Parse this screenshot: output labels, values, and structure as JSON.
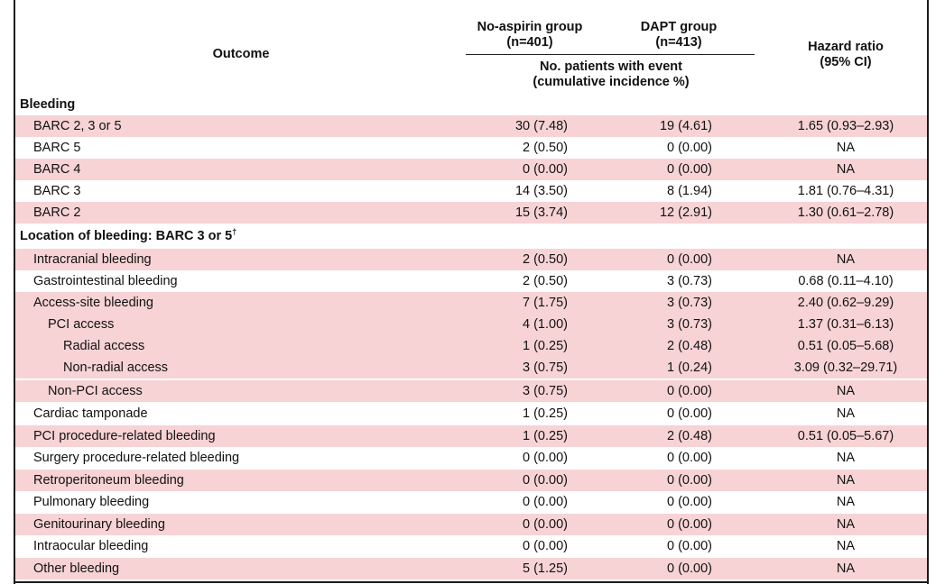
{
  "header": {
    "outcome": "Outcome",
    "no_aspirin_title": "No-aspirin group",
    "no_aspirin_n": "(n=401)",
    "dapt_title": "DAPT group",
    "dapt_n": "(n=413)",
    "events_line1": "No. patients with event",
    "events_line2": "(cumulative incidence %)",
    "hr_line1": "Hazard ratio",
    "hr_line2": "(95% CI)"
  },
  "sections": {
    "bleeding": "Bleeding",
    "location": "Location of bleeding: BARC 3 or 5",
    "location_mark": "†"
  },
  "rows": [
    {
      "label": "BARC 2, 3 or 5",
      "no_aspirin": "30 (7.48)",
      "dapt": "19 (4.61)",
      "hr": "1.65 (0.93–2.93)"
    },
    {
      "label": "BARC 5",
      "no_aspirin": "2 (0.50)",
      "dapt": "0 (0.00)",
      "hr": "NA"
    },
    {
      "label": "BARC 4",
      "no_aspirin": "0 (0.00)",
      "dapt": "0 (0.00)",
      "hr": "NA"
    },
    {
      "label": "BARC 3",
      "no_aspirin": "14 (3.50)",
      "dapt": "8 (1.94)",
      "hr": "1.81 (0.76–4.31)"
    },
    {
      "label": "BARC 2",
      "no_aspirin": "15 (3.74)",
      "dapt": "12 (2.91)",
      "hr": "1.30 (0.61–2.78)"
    },
    {
      "label": "Intracranial bleeding",
      "no_aspirin": "2 (0.50)",
      "dapt": "0 (0.00)",
      "hr": "NA"
    },
    {
      "label": "Gastrointestinal bleeding",
      "no_aspirin": "2 (0.50)",
      "dapt": "3 (0.73)",
      "hr": "0.68 (0.11–4.10)"
    },
    {
      "label": "Access-site bleeding",
      "no_aspirin": "7 (1.75)",
      "dapt": "3 (0.73)",
      "hr": "2.40 (0.62–9.29)"
    },
    {
      "label": "PCI access",
      "no_aspirin": "4 (1.00)",
      "dapt": "3 (0.73)",
      "hr": "1.37 (0.31–6.13)"
    },
    {
      "label": "Radial access",
      "no_aspirin": "1 (0.25)",
      "dapt": "2 (0.48)",
      "hr": "0.51 (0.05–5.68)"
    },
    {
      "label": "Non-radial access",
      "no_aspirin": "3 (0.75)",
      "dapt": "1 (0.24)",
      "hr": "3.09 (0.32–29.71)"
    },
    {
      "label": "Non-PCI access",
      "no_aspirin": "3 (0.75)",
      "dapt": "0 (0.00)",
      "hr": "NA"
    },
    {
      "label": "Cardiac tamponade",
      "no_aspirin": "1 (0.25)",
      "dapt": "0 (0.00)",
      "hr": "NA"
    },
    {
      "label": "PCI procedure-related bleeding",
      "no_aspirin": "1 (0.25)",
      "dapt": "2 (0.48)",
      "hr": "0.51 (0.05–5.67)"
    },
    {
      "label": "Surgery procedure-related bleeding",
      "no_aspirin": "0 (0.00)",
      "dapt": "0 (0.00)",
      "hr": "NA"
    },
    {
      "label": "Retroperitoneum bleeding",
      "no_aspirin": "0 (0.00)",
      "dapt": "0 (0.00)",
      "hr": "NA"
    },
    {
      "label": "Pulmonary bleeding",
      "no_aspirin": "0 (0.00)",
      "dapt": "0 (0.00)",
      "hr": "NA"
    },
    {
      "label": "Genitourinary bleeding",
      "no_aspirin": "0 (0.00)",
      "dapt": "0 (0.00)",
      "hr": "NA"
    },
    {
      "label": "Intraocular bleeding",
      "no_aspirin": "0 (0.00)",
      "dapt": "0 (0.00)",
      "hr": "NA"
    },
    {
      "label": "Other bleeding",
      "no_aspirin": "5 (1.25)",
      "dapt": "0 (0.00)",
      "hr": "NA"
    }
  ],
  "colors": {
    "row_shade": "#f7d3d6",
    "rule": "#1a1a1a"
  }
}
